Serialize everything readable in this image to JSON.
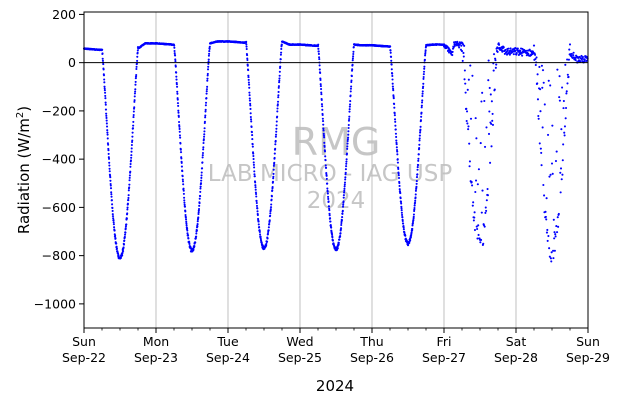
{
  "chart_data": {
    "type": "scatter",
    "title": "",
    "xlabel": "2024",
    "ylabel": "Radiation (W/m²)",
    "ylabel_main": "Radiation (W/m",
    "ylabel_sup": "2",
    "ylabel_close": ")",
    "ylim": [
      -1100,
      210
    ],
    "xlim": [
      "2024-09-22",
      "2024-09-29"
    ],
    "grid": "vertical",
    "zero_line": 0,
    "point_color": "#0000ff",
    "x_ticks": [
      {
        "day": "Sun",
        "date": "Sep-22"
      },
      {
        "day": "Mon",
        "date": "Sep-23"
      },
      {
        "day": "Tue",
        "date": "Sep-24"
      },
      {
        "day": "Wed",
        "date": "Sep-25"
      },
      {
        "day": "Thu",
        "date": "Sep-26"
      },
      {
        "day": "Fri",
        "date": "Sep-27"
      },
      {
        "day": "Sat",
        "date": "Sep-28"
      },
      {
        "day": "Sun",
        "date": "Sep-29"
      }
    ],
    "y_ticks": [
      "200",
      "0",
      "−200",
      "−400",
      "−600",
      "−800",
      "−1000"
    ],
    "y_tick_values": [
      200,
      0,
      -200,
      -400,
      -600,
      -800,
      -1000
    ],
    "series": [
      {
        "values_by_day": [
          {
            "day": "Sep-22",
            "night_level": 58,
            "min": -810,
            "min_hour": 10.0,
            "noisy": false
          },
          {
            "day": "Sep-23",
            "night_level": 80,
            "min": -780,
            "min_hour": 12.0,
            "noisy": false
          },
          {
            "day": "Sep-24",
            "night_level": 88,
            "min": -770,
            "min_hour": 12.0,
            "noisy": false
          },
          {
            "day": "Sep-25",
            "night_level": 75,
            "min": -775,
            "min_hour": 12.0,
            "noisy": false
          },
          {
            "day": "Sep-26",
            "night_level": 72,
            "min": -750,
            "min_hour": 12.0,
            "noisy": false
          },
          {
            "day": "Sep-27",
            "night_level": 75,
            "min": -750,
            "min_hour": 12.0,
            "noisy": true
          },
          {
            "day": "Sep-28",
            "night_level": 45,
            "min": -780,
            "min_hour": 12.0,
            "noisy": true
          }
        ]
      }
    ]
  },
  "watermark": {
    "line1": "RMG",
    "line2": "LAB MICRO - IAG USP",
    "line3": "2024"
  }
}
